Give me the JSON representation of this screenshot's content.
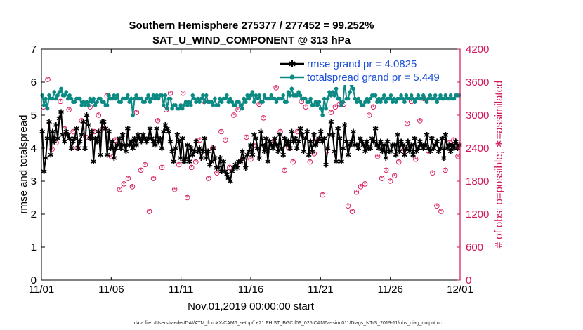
{
  "chart_data": {
    "type": "line",
    "title": [
      "Southern Hemisphere 275377 / 277452 = 99.252%",
      "SAT_U_WIND_COMPONENT @ 313 hPa"
    ],
    "xlabel": "Nov.01,2019 00:00:00 start",
    "ylabel": "rmse and totalspread",
    "y2label": "# of obs: o=possible; ∗=assimilated",
    "footer": "data file: /Users/raeder/DAI/ATM_forcXX/CAM6_setup/f.e21.FHIST_BGC.f09_025.CAM6assim.011/Diags_NTrS_2019-11/obs_diag_output.nc",
    "xlim": [
      0,
      30
    ],
    "ylim": [
      0,
      7
    ],
    "y2lim": [
      0,
      4200
    ],
    "xticks": [
      0,
      5,
      10,
      15,
      20,
      25,
      30
    ],
    "xticklabels": [
      "11/01",
      "11/06",
      "11/11",
      "11/16",
      "11/21",
      "11/26",
      "12/01"
    ],
    "yticks": [
      0,
      1,
      2,
      3,
      4,
      5,
      6,
      7
    ],
    "y2ticks": [
      0,
      600,
      1200,
      1800,
      2400,
      3000,
      3600,
      4200
    ],
    "colors": {
      "rmse": "#000000",
      "spread": "#0b8a84",
      "obs": "#d4145a",
      "y2axis": "#d4145a",
      "legend_text": "#1a4fd6"
    },
    "series": [
      {
        "name": "rmse grand pr = 4.0825",
        "axis": "left",
        "values": [
          4.5,
          3.3,
          3.7,
          4.3,
          4.8,
          3.8,
          4.5,
          4.2,
          4.7,
          4.3,
          4.9,
          5.1,
          4.4,
          4.2,
          4.5,
          4.4,
          4.3,
          4.0,
          4.2,
          4.3,
          4.6,
          4.0,
          4.2,
          4.4,
          4.8,
          4.0,
          5.0,
          4.7,
          4.3,
          4.5,
          3.6,
          4.3,
          4.2,
          4.5,
          3.8,
          4.8,
          4.8,
          4.6,
          3.8,
          4.5,
          4.0,
          4.2,
          3.7,
          4.0,
          4.1,
          4.3,
          4.0,
          4.4,
          4.1,
          3.9,
          4.6,
          4.1,
          4.2,
          4.0,
          4.3,
          4.1,
          4.4,
          4.3,
          4.2,
          4.4,
          4.3,
          4.2,
          4.3,
          4.6,
          4.3,
          4.2,
          4.1,
          4.6,
          4.2,
          4.3,
          4.0,
          4.5,
          4.7,
          4.6,
          4.5,
          4.2,
          3.9,
          3.6,
          4.0,
          4.4,
          4.2,
          3.7,
          4.3,
          3.6,
          3.7,
          4.1,
          3.6,
          4.0,
          3.8,
          3.9,
          4.2,
          3.9,
          4.0,
          3.7,
          3.9,
          4.3,
          3.7,
          3.9,
          3.5,
          3.6,
          4.0,
          3.7,
          3.4,
          3.4,
          3.7,
          3.3,
          3.6,
          3.3,
          3.2,
          3.1,
          3.0,
          3.3,
          3.4,
          3.5,
          3.4,
          3.6,
          3.6,
          3.9,
          3.7,
          3.4,
          3.8,
          3.9,
          4.1,
          3.8,
          4.4,
          4.3,
          4.0,
          3.7,
          4.5,
          4.1,
          3.9,
          4.3,
          3.6,
          4.2,
          4.1,
          4.0,
          4.3,
          4.1,
          3.9,
          4.4,
          4.0,
          3.8,
          4.3,
          4.1,
          4.2,
          4.0,
          4.5,
          4.2,
          4.3,
          4.0,
          4.2,
          4.6,
          4.4,
          3.9,
          4.3,
          4.5,
          3.8,
          4.2,
          3.9,
          4.4,
          4.1,
          4.2,
          4.3,
          4.5,
          4.2,
          4.3,
          3.5,
          4.0,
          4.4,
          4.8,
          4.4,
          3.9,
          3.6,
          4.6,
          4.3,
          3.6,
          4.0,
          4.7,
          4.2,
          3.8,
          4.1,
          4.2,
          4.5,
          4.1,
          4.1,
          4.0,
          4.3,
          4.2,
          4.1,
          3.9,
          4.2,
          4.0,
          4.0,
          4.3,
          4.2,
          4.6,
          4.1,
          4.0,
          4.2,
          3.9,
          4.1,
          3.7,
          4.2,
          3.9,
          3.9,
          4.1,
          4.1,
          3.8,
          4.4,
          3.9,
          4.2,
          4.1,
          3.8,
          4.0,
          4.2,
          3.9,
          4.1,
          3.8,
          4.3,
          3.9,
          4.0,
          4.2,
          4.1,
          4.0,
          4.1,
          4.4,
          4.0,
          3.9,
          4.3,
          4.0,
          4.1,
          4.2,
          3.9,
          4.0,
          4.3,
          3.7,
          4.4,
          4.0,
          4.1,
          3.9,
          4.1,
          4.0,
          4.2,
          4.0,
          4.1
        ]
      },
      {
        "name": "totalspread grand pr = 5.449",
        "axis": "left",
        "values": [
          5.6,
          5.3,
          5.5,
          5.2,
          5.6,
          5.5,
          5.5,
          5.7,
          5.5,
          5.6,
          5.7,
          5.8,
          5.6,
          5.6,
          5.7,
          5.5,
          5.6,
          5.5,
          5.4,
          5.4,
          5.5,
          5.5,
          5.5,
          5.3,
          5.4,
          5.3,
          5.4,
          5.3,
          5.5,
          5.4,
          5.5,
          5.3,
          5.4,
          5.5,
          5.5,
          5.4,
          5.4,
          5.3,
          5.3,
          5.6,
          5.5,
          5.5,
          5.6,
          5.5,
          5.6,
          5.4,
          5.4,
          5.5,
          5.5,
          5.5,
          5.6,
          5.4,
          5.5,
          5.0,
          5.5,
          5.6,
          5.5,
          5.5,
          5.5,
          5.4,
          5.4,
          5.5,
          5.6,
          5.4,
          5.5,
          5.6,
          5.5,
          5.6,
          5.5,
          5.6,
          5.6,
          5.3,
          5.6,
          5.2,
          5.5,
          5.5,
          5.2,
          5.3,
          5.3,
          5.2,
          5.2,
          5.3,
          5.2,
          5.3,
          5.4,
          5.3,
          5.4,
          5.3,
          5.6,
          5.5,
          5.4,
          5.5,
          5.4,
          5.5,
          5.6,
          5.4,
          5.6,
          5.4,
          5.4,
          5.4,
          5.3,
          5.5,
          5.3,
          5.3,
          5.5,
          5.4,
          5.5,
          5.5,
          5.6,
          5.4,
          5.5,
          5.4,
          5.3,
          5.3,
          5.4,
          5.4,
          5.3,
          5.2,
          5.5,
          5.4,
          5.6,
          5.5,
          5.6,
          5.7,
          5.4,
          5.6,
          5.5,
          5.6,
          5.4,
          5.4,
          5.6,
          5.5,
          5.5,
          5.5,
          5.6,
          5.5,
          5.5,
          5.4,
          5.5,
          5.5,
          5.5,
          5.6,
          5.4,
          5.4,
          5.7,
          5.6,
          5.8,
          5.6,
          5.6,
          5.6,
          5.7,
          5.6,
          5.5,
          5.5,
          5.5,
          5.4,
          5.4,
          5.5,
          5.3,
          5.3,
          5.4,
          5.3,
          5.4,
          5.2,
          5.0,
          5.5,
          5.2,
          5.5,
          5.7,
          5.6,
          5.7,
          5.6,
          5.8,
          5.5,
          5.5,
          5.3,
          5.4,
          6.0,
          5.5,
          5.5,
          5.7,
          5.9,
          5.8,
          5.5,
          5.4,
          5.5,
          5.4,
          5.3,
          5.3,
          5.4,
          5.5,
          5.4,
          5.5,
          5.6,
          5.6,
          5.6,
          5.4,
          5.5,
          5.4,
          5.5,
          5.6,
          5.4,
          5.5,
          5.5,
          5.6,
          5.4,
          5.5,
          5.4,
          5.5,
          5.5,
          5.6,
          5.5,
          5.4,
          5.6,
          5.5,
          5.5,
          5.6,
          5.5,
          5.4,
          5.5,
          5.6,
          5.5,
          5.5,
          5.6,
          5.5,
          5.4,
          5.5,
          5.6,
          5.5,
          5.5,
          5.6,
          5.4,
          5.5,
          5.6,
          5.5,
          5.5,
          5.6,
          5.5,
          5.5,
          5.6,
          5.5,
          5.5,
          5.6,
          5.6,
          5.6
        ]
      },
      {
        "name": "obs possible / assimilated",
        "axis": "right",
        "marker": "o+*",
        "values": [
          3150,
          3650,
          2380,
          2500,
          3250,
          2750,
          3100,
          2700,
          2400,
          2900,
          2600,
          3150,
          2700,
          3000,
          2750,
          3350,
          2250,
          2550,
          1650,
          1750,
          1850,
          1700,
          3050,
          2000,
          2100,
          1250,
          1850,
          2900,
          2050,
          3100,
          3400,
          1650,
          2100,
          3400,
          1500,
          2050,
          2150,
          2550,
          3250,
          1850,
          2400,
          1950,
          2700,
          2550,
          2050,
          3000,
          3100,
          2150,
          2600,
          2200,
          2450,
          3200,
          2950,
          2350,
          2500,
          3500,
          2700,
          2000,
          2400,
          2150,
          2700,
          3250,
          3150,
          2150,
          2300,
          2550,
          1550,
          2350,
          3050,
          3150,
          3200,
          3200,
          1350,
          1250,
          1600,
          1700,
          1750,
          3000,
          3150,
          2250,
          1850,
          2000,
          1800,
          1900,
          2150,
          2350,
          2850,
          3250,
          2200,
          2900,
          3300,
          2350,
          1950,
          1350,
          1250,
          2000,
          2500,
          2550,
          2250
        ]
      }
    ],
    "legend": [
      "rmse grand pr = 4.0825",
      "totalspread grand pr = 5.449"
    ]
  }
}
